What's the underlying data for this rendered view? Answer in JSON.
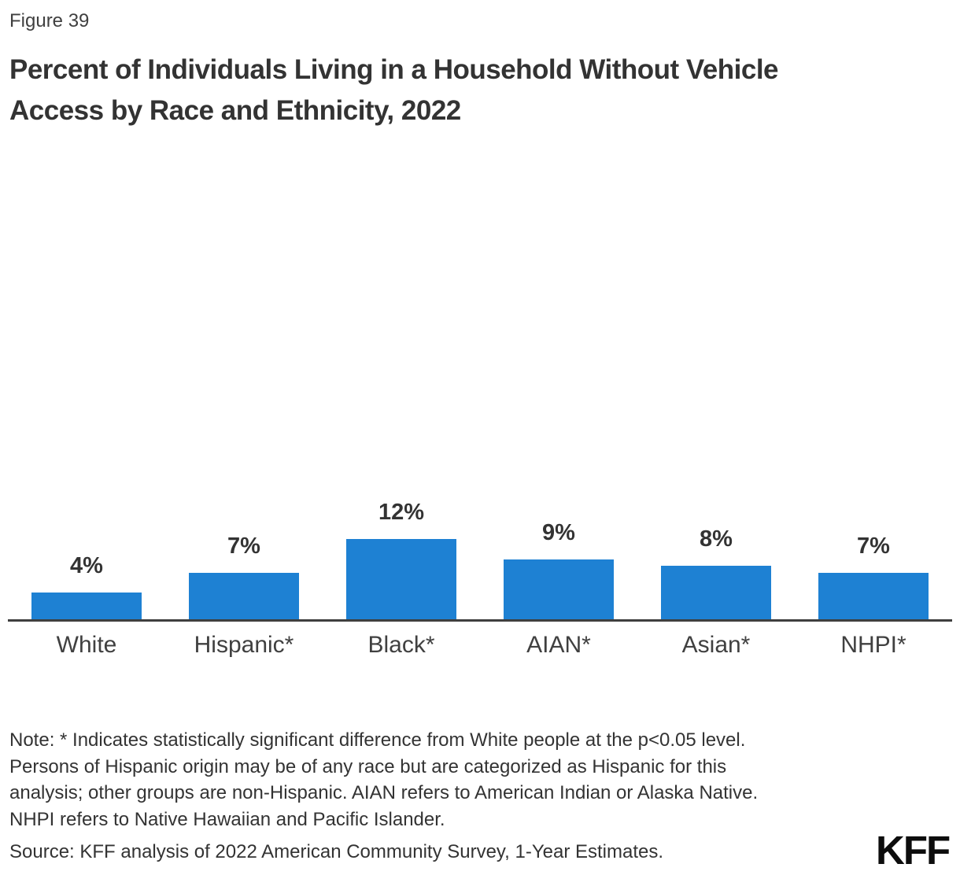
{
  "figure_label": "Figure 39",
  "title_lines": [
    "Percent of Individuals Living in a Household Without Vehicle",
    "Access by Race and Ethnicity, 2022"
  ],
  "chart_data": {
    "type": "bar",
    "title": "Percent of Individuals Living in a Household Without Vehicle Access by Race and Ethnicity, 2022",
    "categories": [
      "White",
      "Hispanic*",
      "Black*",
      "AIAN*",
      "Asian*",
      "NHPI*"
    ],
    "values": [
      4,
      7,
      12,
      9,
      8,
      7
    ],
    "value_labels": [
      "4%",
      "7%",
      "12%",
      "9%",
      "8%",
      "7%"
    ],
    "xlabel": "",
    "ylabel": "",
    "ylim": [
      0,
      13
    ],
    "grid": false,
    "legend": "none",
    "bar_color": "#1E81D3",
    "axis_color": "#3F3F3F",
    "label_color": "#333333"
  },
  "note": {
    "lines": [
      "Note: * Indicates statistically significant difference from White people at the p<0.05 level.",
      "Persons of Hispanic origin may be of any race but are categorized as Hispanic for this",
      "analysis; other groups are non-Hispanic. AIAN refers to American Indian or Alaska Native.",
      "NHPI refers to Native Hawaiian and Pacific Islander."
    ]
  },
  "source": "Source: KFF analysis of 2022 American Community Survey, 1-Year Estimates.",
  "logo_text": "KFF"
}
